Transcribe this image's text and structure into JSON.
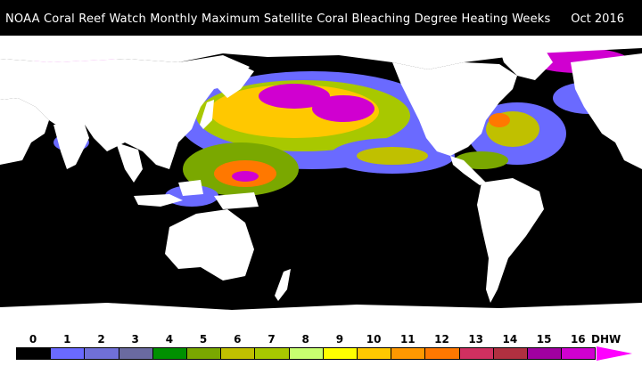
{
  "title": "NOAA Coral Reef Watch Monthly Maximum Satellite Coral Bleaching Degree Heating Weeks",
  "date": "Oct 2016",
  "legend": {
    "unit": "DHW",
    "ticks": [
      "0",
      "1",
      "2",
      "3",
      "4",
      "5",
      "6",
      "7",
      "8",
      "9",
      "10",
      "11",
      "12",
      "13",
      "14",
      "15",
      "16"
    ],
    "colors": [
      "#000000",
      "#6a6aff",
      "#7070d8",
      "#6a6aa0",
      "#009000",
      "#7aa800",
      "#c0c000",
      "#a8c800",
      "#c8ff70",
      "#ffff00",
      "#ffc800",
      "#ff9800",
      "#ff7800",
      "#d03060",
      "#b03040",
      "#a000a0",
      "#d000d0"
    ],
    "arrow_color": "#ff00ff"
  },
  "map": {
    "land_color": "#ffffff",
    "ocean_color": "#000000"
  }
}
